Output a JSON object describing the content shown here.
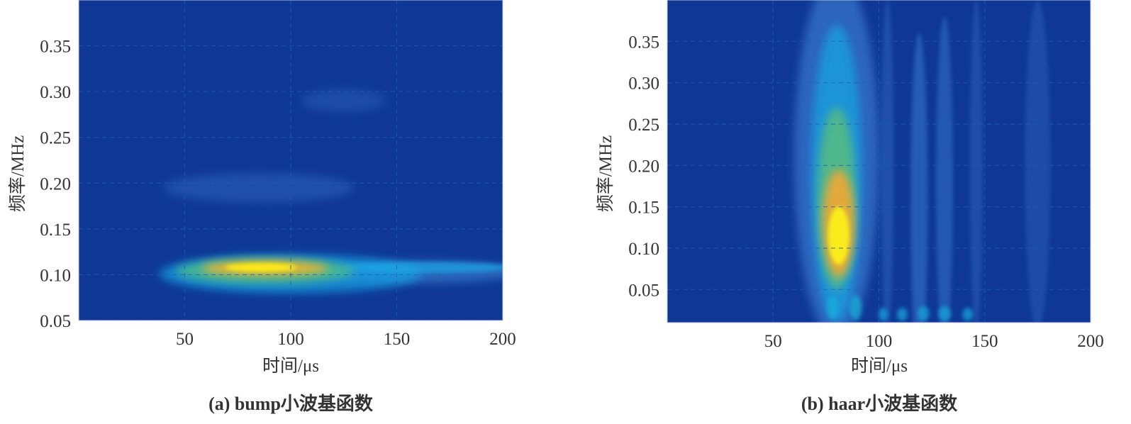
{
  "chart_data": [
    {
      "type": "heatmap",
      "caption": "(a) bump小波基函数",
      "xlabel": "时间/μs",
      "ylabel": "频率/MHz",
      "xlim": [
        0,
        200
      ],
      "ylim": [
        0.05,
        0.4
      ],
      "xticks": [
        "50",
        "100",
        "150",
        "200"
      ],
      "yticks": [
        "0.05",
        "0.10",
        "0.15",
        "0.20",
        "0.25",
        "0.30",
        "0.35"
      ],
      "grid": true,
      "colormap": "parula",
      "background_color": "#0f3896",
      "features": [
        {
          "time": 85,
          "freq": 0.195,
          "dt": 45,
          "df": 0.016,
          "level": 0.12,
          "color": "#2f62bc"
        },
        {
          "time": 125,
          "freq": 0.29,
          "dt": 20,
          "df": 0.012,
          "level": 0.1,
          "color": "#2a5cb8"
        },
        {
          "time": 160,
          "freq": 0.103,
          "dt": 48,
          "df": 0.012,
          "level": 0.2,
          "color": "#3d86d0"
        },
        {
          "time": 100,
          "freq": 0.101,
          "dt": 62,
          "df": 0.021,
          "level": 0.4,
          "color": "#17a4e4"
        },
        {
          "time": 165,
          "freq": 0.108,
          "dt": 40,
          "df": 0.006,
          "level": 0.35,
          "color": "#1aa8e6"
        },
        {
          "time": 88,
          "freq": 0.104,
          "dt": 42,
          "df": 0.014,
          "level": 0.6,
          "color": "#4fbf8a"
        },
        {
          "time": 88,
          "freq": 0.107,
          "dt": 30,
          "df": 0.008,
          "level": 0.85,
          "color": "#f2b52a"
        },
        {
          "time": 86,
          "freq": 0.108,
          "dt": 17,
          "df": 0.0045,
          "level": 1.0,
          "color": "#faea1c"
        }
      ]
    },
    {
      "type": "heatmap",
      "caption": "(b) haar小波基函数",
      "xlabel": "时间/μs",
      "ylabel": "频率/MHz",
      "xlim": [
        0,
        200
      ],
      "ylim": [
        0.01,
        0.4
      ],
      "xticks": [
        "50",
        "100",
        "150",
        "200"
      ],
      "yticks": [
        "0.05",
        "0.10",
        "0.15",
        "0.20",
        "0.25",
        "0.30",
        "0.35"
      ],
      "grid": true,
      "colormap": "parula",
      "background_color": "#0f3896",
      "features": [
        {
          "time": 80,
          "freq": 0.21,
          "dt": 20,
          "df": 0.22,
          "level": 0.3,
          "color": "#3c7ed2"
        },
        {
          "time": 104,
          "freq": 0.2,
          "dt": 3,
          "df": 0.2,
          "level": 0.15,
          "color": "#2c62bc"
        },
        {
          "time": 119,
          "freq": 0.16,
          "dt": 4,
          "df": 0.2,
          "level": 0.2,
          "color": "#3474c8"
        },
        {
          "time": 131,
          "freq": 0.18,
          "dt": 4,
          "df": 0.2,
          "level": 0.18,
          "color": "#3070c4"
        },
        {
          "time": 146,
          "freq": 0.2,
          "dt": 3,
          "df": 0.2,
          "level": 0.12,
          "color": "#2a60b8"
        },
        {
          "time": 175,
          "freq": 0.2,
          "dt": 6,
          "df": 0.2,
          "level": 0.1,
          "color": "#2a5cb6"
        },
        {
          "time": 80,
          "freq": 0.19,
          "dt": 12,
          "df": 0.18,
          "level": 0.45,
          "color": "#17a6e2"
        },
        {
          "time": 80,
          "freq": 0.16,
          "dt": 9,
          "df": 0.11,
          "level": 0.6,
          "color": "#5cc07a"
        },
        {
          "time": 81,
          "freq": 0.13,
          "dt": 7.5,
          "df": 0.065,
          "level": 0.8,
          "color": "#f3a833"
        },
        {
          "time": 81,
          "freq": 0.115,
          "dt": 5,
          "df": 0.035,
          "level": 1.0,
          "color": "#faec1c"
        },
        {
          "time": 78,
          "freq": 0.028,
          "dt": 2.5,
          "df": 0.014,
          "level": 0.45,
          "color": "#19b0d8"
        },
        {
          "time": 89,
          "freq": 0.028,
          "dt": 2.8,
          "df": 0.015,
          "level": 0.45,
          "color": "#19b0d8"
        },
        {
          "time": 102,
          "freq": 0.02,
          "dt": 2.2,
          "df": 0.008,
          "level": 0.4,
          "color": "#19a8dc"
        },
        {
          "time": 111,
          "freq": 0.02,
          "dt": 2.5,
          "df": 0.008,
          "level": 0.4,
          "color": "#19a8dc"
        },
        {
          "time": 121,
          "freq": 0.021,
          "dt": 2.8,
          "df": 0.009,
          "level": 0.4,
          "color": "#19a8dc"
        },
        {
          "time": 131,
          "freq": 0.021,
          "dt": 3,
          "df": 0.009,
          "level": 0.4,
          "color": "#19a8dc"
        },
        {
          "time": 142,
          "freq": 0.02,
          "dt": 2.5,
          "df": 0.008,
          "level": 0.4,
          "color": "#19a8dc"
        }
      ]
    }
  ]
}
